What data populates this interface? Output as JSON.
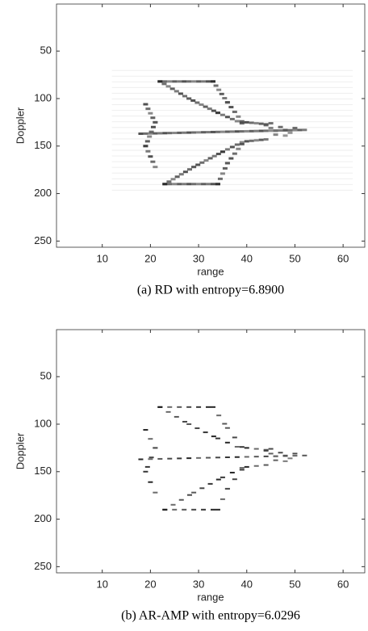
{
  "chart_data": [
    {
      "type": "image",
      "xlabel": "range",
      "ylabel": "Doppler",
      "caption": "(a) RD with entropy=6.8900",
      "xlim": [
        0.5,
        64.5
      ],
      "ylim": [
        0.5,
        256.5
      ],
      "y_reversed": true,
      "xticks": [
        10,
        20,
        30,
        40,
        50,
        60
      ],
      "yticks": [
        50,
        100,
        150,
        200,
        250
      ],
      "style": "blurred"
    },
    {
      "type": "image",
      "xlabel": "range",
      "ylabel": "Doppler",
      "caption": "(b) AR-AMP with entropy=6.0296",
      "xlim": [
        0.5,
        64.5
      ],
      "ylim": [
        0.5,
        256.5
      ],
      "y_reversed": true,
      "xticks": [
        10,
        20,
        30,
        40,
        50,
        60
      ],
      "yticks": [
        50,
        100,
        150,
        200,
        250
      ],
      "style": "sharp"
    }
  ]
}
